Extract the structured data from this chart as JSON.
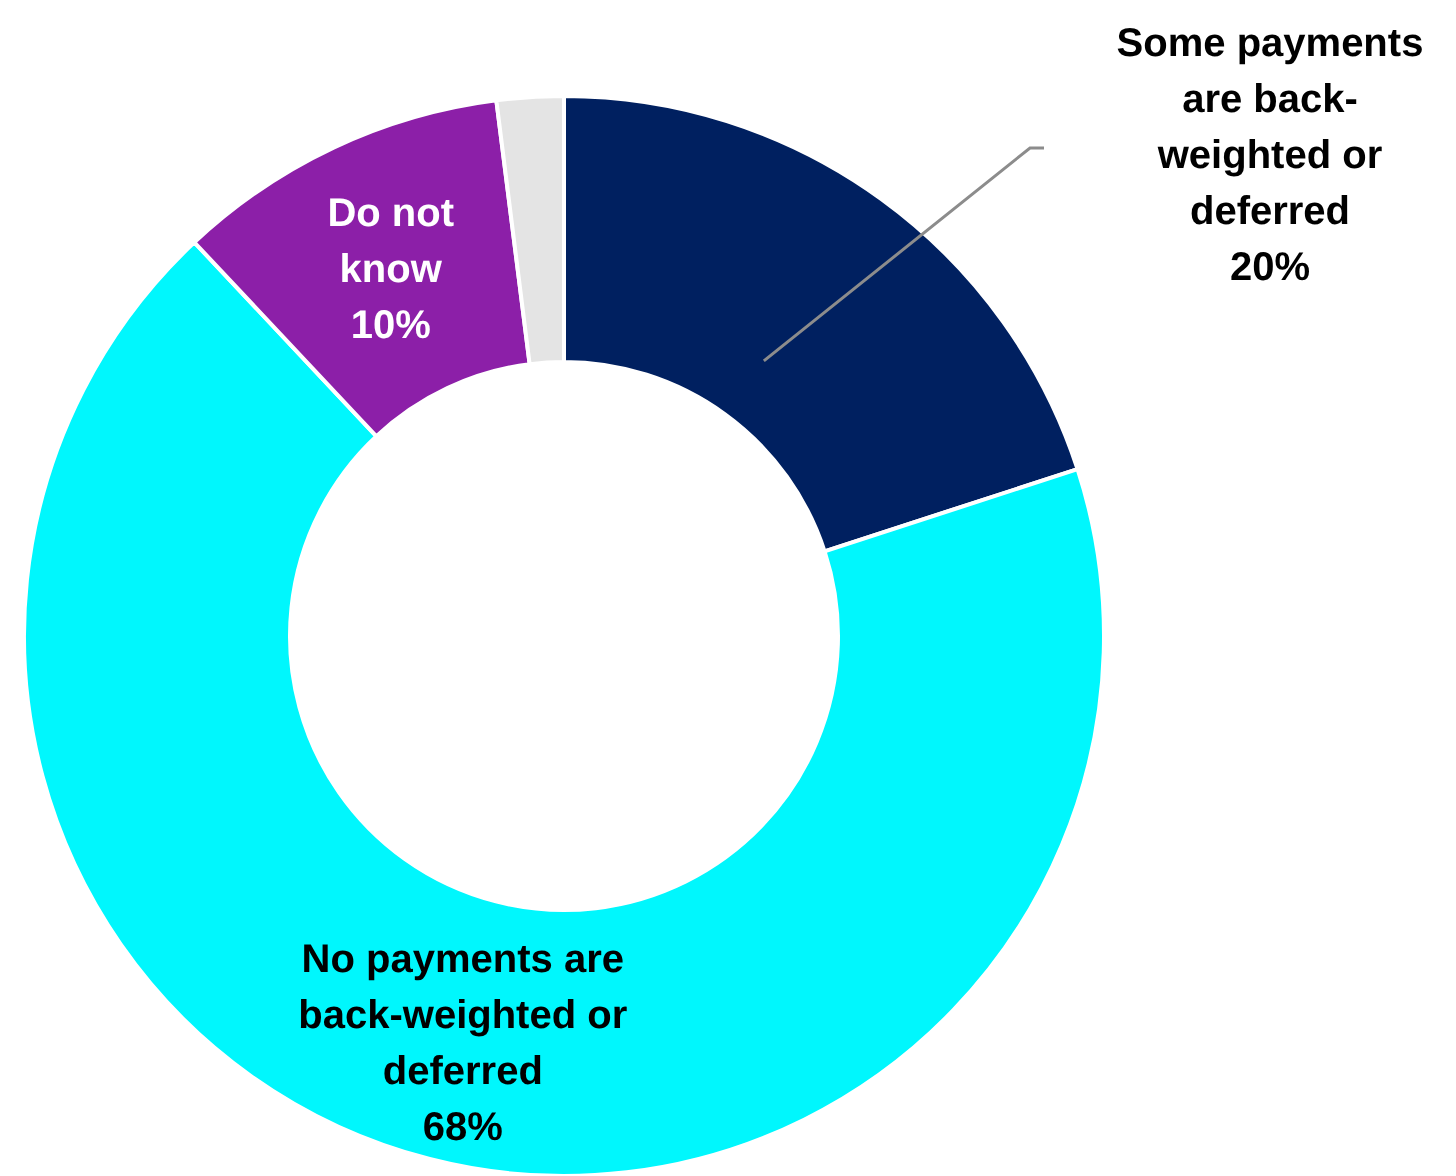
{
  "chart_data": {
    "type": "donut",
    "categories": [
      "Some payments are back-weighted or deferred",
      "No payments are back-weighted or deferred",
      "Do not know",
      null
    ],
    "values": [
      20,
      68,
      10,
      2
    ],
    "value_labels": [
      "20%",
      "68%",
      "10%",
      null
    ],
    "colors": [
      "#002060",
      "#00f7fd",
      "#8c1fa8",
      "#e4e4e4"
    ],
    "legend": false
  }
}
